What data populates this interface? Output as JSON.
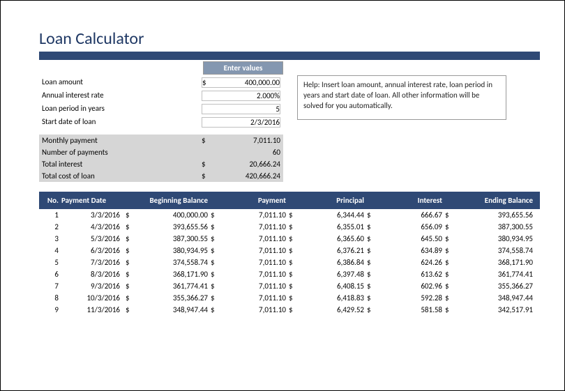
{
  "title": "Loan Calculator",
  "colors": {
    "accent": "#2f4975",
    "title_color": "#1f3864",
    "enter_values_bg": "#8497b0",
    "summary_bg": "#d6d6d6",
    "border": "#bfbfbf"
  },
  "enter_values_label": "Enter values",
  "inputs": [
    {
      "label": "Loan amount",
      "currency": "$",
      "value": "400,000.00"
    },
    {
      "label": "Annual interest rate",
      "currency": "",
      "value": "2.000%"
    },
    {
      "label": "Loan period in years",
      "currency": "",
      "value": "5"
    },
    {
      "label": "Start date of loan",
      "currency": "",
      "value": "2/3/2016"
    }
  ],
  "summary": [
    {
      "label": "Monthly payment",
      "currency": "$",
      "value": "7,011.10"
    },
    {
      "label": "Number of payments",
      "currency": "",
      "value": "60"
    },
    {
      "label": "Total interest",
      "currency": "$",
      "value": "20,666.24"
    },
    {
      "label": "Total cost of loan",
      "currency": "$",
      "value": "420,666.24"
    }
  ],
  "help_text": "Help: Insert loan amount, annual interest rate, loan period in years and start date of loan. All other information will be solved for you automatically.",
  "table": {
    "columns": [
      "No.",
      "Payment Date",
      "Beginning Balance",
      "Payment",
      "Principal",
      "Interest",
      "Ending Balance"
    ],
    "rows": [
      {
        "no": "1",
        "date": "3/3/2016",
        "bb": "400,000.00",
        "pay": "7,011.10",
        "prin": "6,344.44",
        "int": "666.67",
        "eb": "393,655.56"
      },
      {
        "no": "2",
        "date": "4/3/2016",
        "bb": "393,655.56",
        "pay": "7,011.10",
        "prin": "6,355.01",
        "int": "656.09",
        "eb": "387,300.55"
      },
      {
        "no": "3",
        "date": "5/3/2016",
        "bb": "387,300.55",
        "pay": "7,011.10",
        "prin": "6,365.60",
        "int": "645.50",
        "eb": "380,934.95"
      },
      {
        "no": "4",
        "date": "6/3/2016",
        "bb": "380,934.95",
        "pay": "7,011.10",
        "prin": "6,376.21",
        "int": "634.89",
        "eb": "374,558.74"
      },
      {
        "no": "5",
        "date": "7/3/2016",
        "bb": "374,558.74",
        "pay": "7,011.10",
        "prin": "6,386.84",
        "int": "624.26",
        "eb": "368,171.90"
      },
      {
        "no": "6",
        "date": "8/3/2016",
        "bb": "368,171.90",
        "pay": "7,011.10",
        "prin": "6,397.48",
        "int": "613.62",
        "eb": "361,774.41"
      },
      {
        "no": "7",
        "date": "9/3/2016",
        "bb": "361,774.41",
        "pay": "7,011.10",
        "prin": "6,408.15",
        "int": "602.96",
        "eb": "355,366.27"
      },
      {
        "no": "8",
        "date": "10/3/2016",
        "bb": "355,366.27",
        "pay": "7,011.10",
        "prin": "6,418.83",
        "int": "592.28",
        "eb": "348,947.44"
      },
      {
        "no": "9",
        "date": "11/3/2016",
        "bb": "348,947.44",
        "pay": "7,011.10",
        "prin": "6,429.52",
        "int": "581.58",
        "eb": "342,517.91"
      }
    ]
  }
}
